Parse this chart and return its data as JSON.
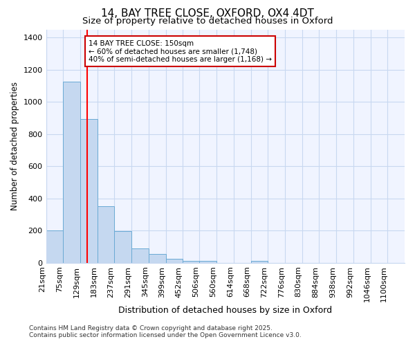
{
  "title1": "14, BAY TREE CLOSE, OXFORD, OX4 4DT",
  "title2": "Size of property relative to detached houses in Oxford",
  "xlabel": "Distribution of detached houses by size in Oxford",
  "ylabel": "Number of detached properties",
  "bin_labels": [
    "21sqm",
    "75sqm",
    "129sqm",
    "183sqm",
    "237sqm",
    "291sqm",
    "345sqm",
    "399sqm",
    "452sqm",
    "506sqm",
    "560sqm",
    "614sqm",
    "668sqm",
    "722sqm",
    "776sqm",
    "830sqm",
    "884sqm",
    "938sqm",
    "992sqm",
    "1046sqm",
    "1100sqm"
  ],
  "bin_edges": [
    21,
    75,
    129,
    183,
    237,
    291,
    345,
    399,
    452,
    506,
    560,
    614,
    668,
    722,
    776,
    830,
    884,
    938,
    992,
    1046,
    1100
  ],
  "bar_heights": [
    200,
    1125,
    895,
    350,
    195,
    90,
    55,
    25,
    10,
    10,
    0,
    0,
    10,
    0,
    0,
    0,
    0,
    0,
    0,
    0
  ],
  "bar_color": "#c5d8f0",
  "bar_edge_color": "#6aaad4",
  "red_line_x": 150,
  "ylim": [
    0,
    1450
  ],
  "yticks": [
    0,
    200,
    400,
    600,
    800,
    1000,
    1200,
    1400
  ],
  "annotation_title": "14 BAY TREE CLOSE: 150sqm",
  "annotation_line1": "← 60% of detached houses are smaller (1,748)",
  "annotation_line2": "40% of semi-detached houses are larger (1,168) →",
  "annotation_box_color": "#ffffff",
  "annotation_box_edge_color": "#cc0000",
  "footer1": "Contains HM Land Registry data © Crown copyright and database right 2025.",
  "footer2": "Contains public sector information licensed under the Open Government Licence v3.0.",
  "bg_color": "#ffffff",
  "plot_bg_color": "#f0f4ff",
  "grid_color": "#c8d8f0",
  "title_fontsize": 11,
  "subtitle_fontsize": 9.5,
  "ylabel_fontsize": 8.5,
  "xlabel_fontsize": 9,
  "tick_fontsize": 8,
  "footer_fontsize": 6.5
}
